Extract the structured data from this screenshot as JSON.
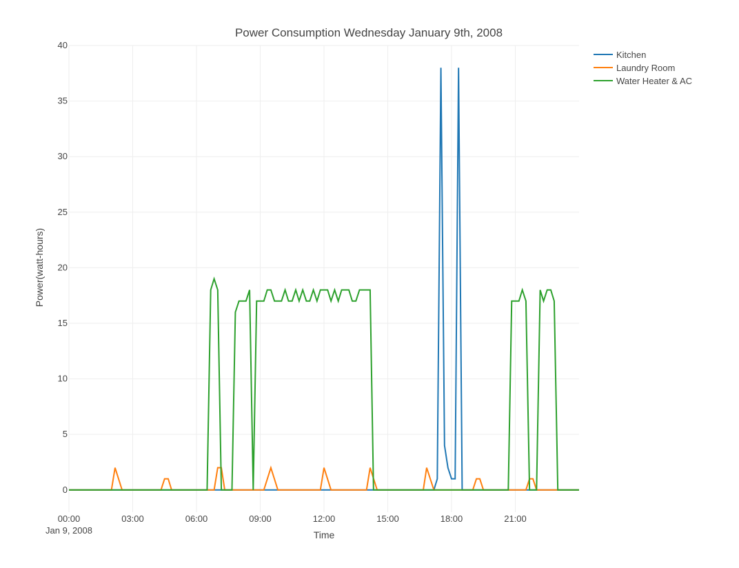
{
  "chart_data": {
    "type": "line",
    "title": "Power Consumption Wednesday January 9th, 2008",
    "xlabel": "Time",
    "ylabel": "Power(watt-hours)",
    "x_unit": "hours since 00:00 Jan 9, 2008",
    "xlim": [
      0,
      24
    ],
    "ylim": [
      -2,
      40
    ],
    "x_ticks": [
      {
        "value": 0,
        "label": "00:00",
        "sublabel": "Jan 9, 2008"
      },
      {
        "value": 3,
        "label": "03:00"
      },
      {
        "value": 6,
        "label": "06:00"
      },
      {
        "value": 9,
        "label": "09:00"
      },
      {
        "value": 12,
        "label": "12:00"
      },
      {
        "value": 15,
        "label": "15:00"
      },
      {
        "value": 18,
        "label": "18:00"
      },
      {
        "value": 21,
        "label": "21:00"
      }
    ],
    "y_ticks": [
      0,
      5,
      10,
      15,
      20,
      25,
      30,
      35,
      40
    ],
    "grid": true,
    "legend_position": "top-right",
    "series": [
      {
        "name": "Kitchen",
        "color": "#1f77b4",
        "points": [
          [
            0,
            0
          ],
          [
            17.17,
            0
          ],
          [
            17.33,
            1
          ],
          [
            17.5,
            38
          ],
          [
            17.67,
            4
          ],
          [
            17.83,
            2
          ],
          [
            18.0,
            1
          ],
          [
            18.17,
            1
          ],
          [
            18.33,
            38
          ],
          [
            18.5,
            0
          ],
          [
            24,
            0
          ]
        ]
      },
      {
        "name": "Laundry Room",
        "color": "#ff7f0e",
        "points": [
          [
            0,
            0
          ],
          [
            2.0,
            0
          ],
          [
            2.17,
            2
          ],
          [
            2.5,
            0
          ],
          [
            4.33,
            0
          ],
          [
            4.5,
            1
          ],
          [
            4.67,
            1
          ],
          [
            4.83,
            0
          ],
          [
            6.83,
            0
          ],
          [
            7.0,
            2
          ],
          [
            7.17,
            2
          ],
          [
            7.33,
            0
          ],
          [
            9.17,
            0
          ],
          [
            9.5,
            2
          ],
          [
            9.83,
            0
          ],
          [
            11.83,
            0
          ],
          [
            12.0,
            2
          ],
          [
            12.33,
            0
          ],
          [
            14.0,
            0
          ],
          [
            14.17,
            2
          ],
          [
            14.5,
            0
          ],
          [
            16.67,
            0
          ],
          [
            16.83,
            2
          ],
          [
            17.17,
            0
          ],
          [
            19.0,
            0
          ],
          [
            19.17,
            1
          ],
          [
            19.33,
            1
          ],
          [
            19.5,
            0
          ],
          [
            21.5,
            0
          ],
          [
            21.67,
            1
          ],
          [
            21.83,
            1
          ],
          [
            22.0,
            0
          ],
          [
            24,
            0
          ]
        ]
      },
      {
        "name": "Water Heater & AC",
        "color": "#2ca02c",
        "points": [
          [
            0,
            0
          ],
          [
            6.5,
            0
          ],
          [
            6.67,
            18
          ],
          [
            6.83,
            19
          ],
          [
            7.0,
            18
          ],
          [
            7.17,
            0
          ],
          [
            7.67,
            0
          ],
          [
            7.83,
            16
          ],
          [
            8.0,
            17
          ],
          [
            8.33,
            17
          ],
          [
            8.5,
            18
          ],
          [
            8.67,
            0
          ],
          [
            8.83,
            17
          ],
          [
            9.17,
            17
          ],
          [
            9.33,
            18
          ],
          [
            9.5,
            18
          ],
          [
            9.67,
            17
          ],
          [
            10.0,
            17
          ],
          [
            10.17,
            18
          ],
          [
            10.33,
            17
          ],
          [
            10.5,
            17
          ],
          [
            10.67,
            18
          ],
          [
            10.83,
            17
          ],
          [
            11.0,
            18
          ],
          [
            11.17,
            17
          ],
          [
            11.33,
            17
          ],
          [
            11.5,
            18
          ],
          [
            11.67,
            17
          ],
          [
            11.83,
            18
          ],
          [
            12.17,
            18
          ],
          [
            12.33,
            17
          ],
          [
            12.5,
            18
          ],
          [
            12.67,
            17
          ],
          [
            12.83,
            18
          ],
          [
            13.17,
            18
          ],
          [
            13.33,
            17
          ],
          [
            13.5,
            17
          ],
          [
            13.67,
            18
          ],
          [
            14.17,
            18
          ],
          [
            14.33,
            0
          ],
          [
            20.67,
            0
          ],
          [
            20.83,
            17
          ],
          [
            21.17,
            17
          ],
          [
            21.33,
            18
          ],
          [
            21.5,
            17
          ],
          [
            21.67,
            0
          ],
          [
            22.0,
            0
          ],
          [
            22.17,
            18
          ],
          [
            22.33,
            17
          ],
          [
            22.5,
            18
          ],
          [
            22.67,
            18
          ],
          [
            22.83,
            17
          ],
          [
            23.0,
            0
          ],
          [
            24,
            0
          ]
        ]
      }
    ]
  }
}
